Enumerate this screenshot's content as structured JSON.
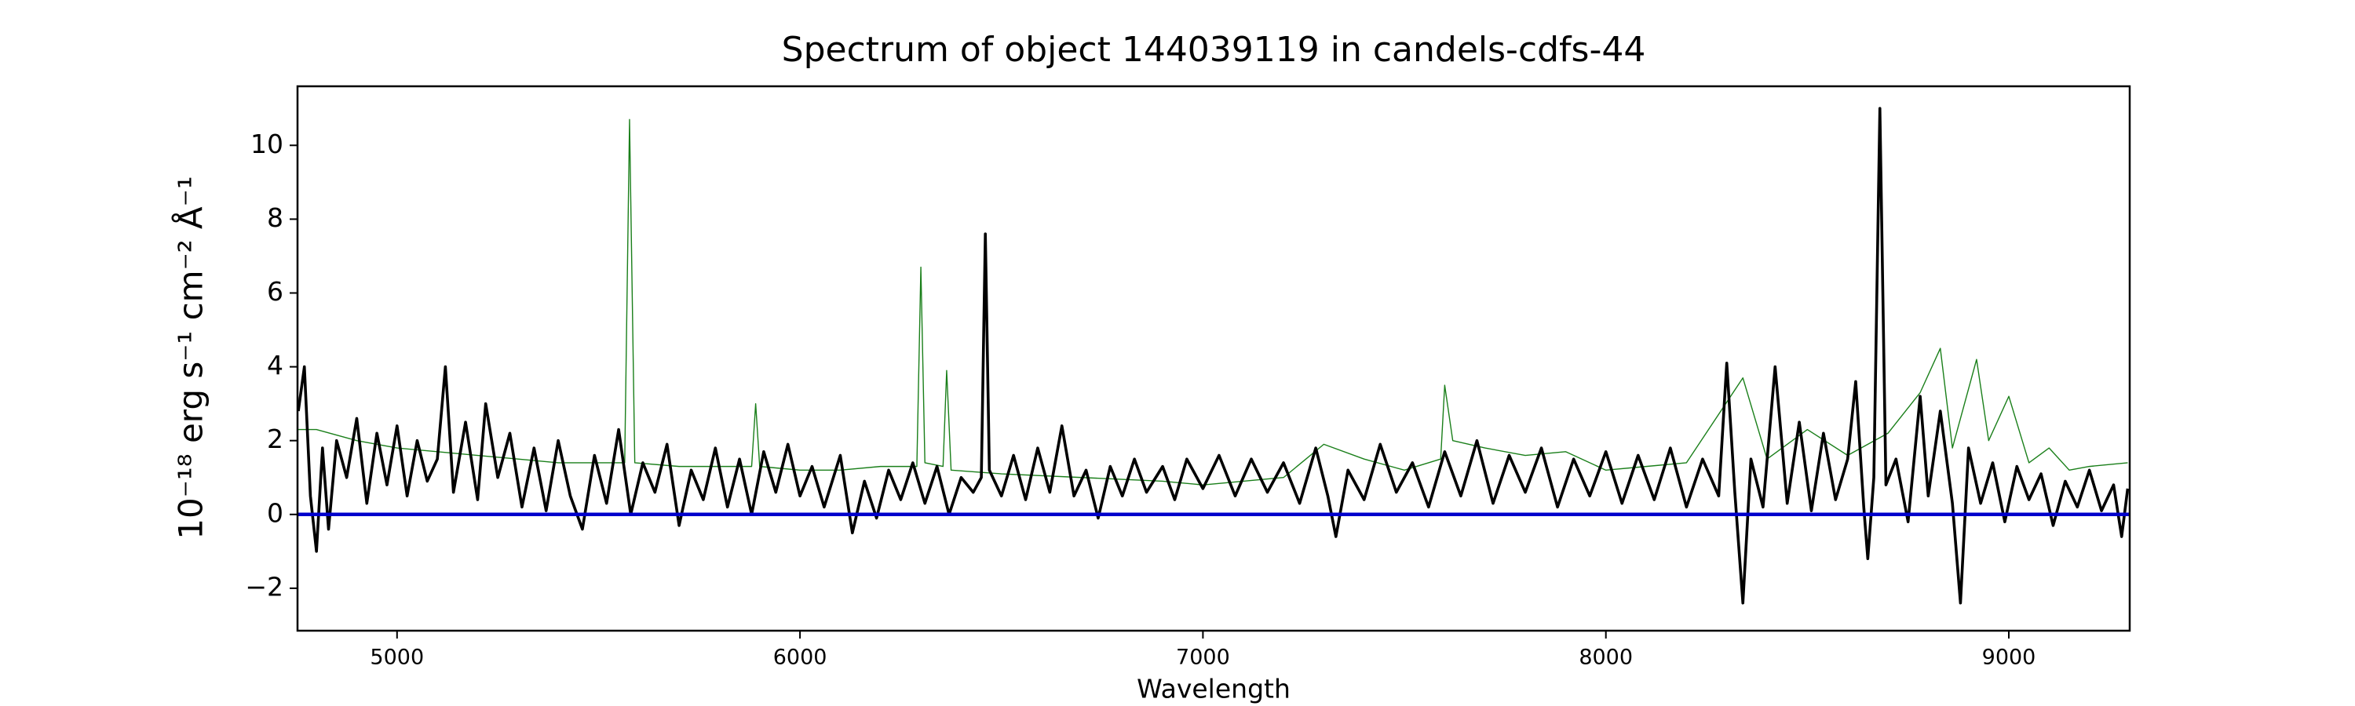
{
  "chart_data": {
    "type": "line",
    "title": "Spectrum of object 144039119 in candels-cdfs-44",
    "xlabel": "Wavelength",
    "ylabel": "10⁻¹⁸ erg s⁻¹ cm⁻² Å⁻¹",
    "xlim": [
      4753,
      9300
    ],
    "ylim": [
      -3.15,
      11.6
    ],
    "xticks": [
      5000,
      6000,
      7000,
      8000,
      9000
    ],
    "yticks": [
      {
        "value": -2,
        "label": "−2"
      },
      0,
      2,
      4,
      6,
      8,
      10
    ],
    "series": [
      {
        "color": "#1a7f1a",
        "x": [
          4755,
          4800,
          4900,
          5000,
          5100,
          5200,
          5300,
          5400,
          5500,
          5565,
          5577,
          5590,
          5700,
          5800,
          5880,
          5890,
          5900,
          6000,
          6100,
          6200,
          6290,
          6300,
          6310,
          6355,
          6364,
          6375,
          6500,
          6700,
          6900,
          7000,
          7200,
          7300,
          7400,
          7500,
          7590,
          7600,
          7620,
          7700,
          7800,
          7900,
          8000,
          8100,
          8200,
          8340,
          8400,
          8500,
          8600,
          8700,
          8780,
          8830,
          8860,
          8920,
          8950,
          9000,
          9050,
          9100,
          9150,
          9200,
          9295
        ],
        "values": [
          2.3,
          2.3,
          2.0,
          1.8,
          1.7,
          1.6,
          1.5,
          1.4,
          1.4,
          1.4,
          10.7,
          1.4,
          1.3,
          1.3,
          1.3,
          3.0,
          1.3,
          1.2,
          1.2,
          1.3,
          1.3,
          6.7,
          1.4,
          1.3,
          3.9,
          1.2,
          1.1,
          1.0,
          0.9,
          0.8,
          1.0,
          1.9,
          1.5,
          1.2,
          1.5,
          3.5,
          2.0,
          1.8,
          1.6,
          1.7,
          1.2,
          1.3,
          1.4,
          3.7,
          1.5,
          2.3,
          1.6,
          2.2,
          3.3,
          4.5,
          1.8,
          4.2,
          2.0,
          3.2,
          1.4,
          1.8,
          1.2,
          1.3,
          1.4
        ]
      },
      {
        "color": "#000000",
        "x": [
          4755,
          4770,
          4785,
          4800,
          4815,
          4830,
          4850,
          4875,
          4900,
          4925,
          4950,
          4975,
          5000,
          5025,
          5050,
          5075,
          5100,
          5120,
          5140,
          5170,
          5200,
          5220,
          5250,
          5280,
          5310,
          5340,
          5370,
          5400,
          5430,
          5460,
          5490,
          5520,
          5550,
          5580,
          5610,
          5640,
          5670,
          5700,
          5730,
          5760,
          5790,
          5820,
          5850,
          5880,
          5910,
          5940,
          5970,
          6000,
          6030,
          6060,
          6100,
          6130,
          6160,
          6190,
          6220,
          6250,
          6280,
          6310,
          6340,
          6370,
          6400,
          6430,
          6450,
          6460,
          6470,
          6500,
          6530,
          6560,
          6590,
          6620,
          6650,
          6680,
          6710,
          6740,
          6770,
          6800,
          6830,
          6860,
          6900,
          6930,
          6960,
          7000,
          7040,
          7080,
          7120,
          7160,
          7200,
          7240,
          7280,
          7310,
          7330,
          7360,
          7400,
          7440,
          7480,
          7520,
          7560,
          7600,
          7640,
          7680,
          7720,
          7760,
          7800,
          7840,
          7880,
          7920,
          7960,
          8000,
          8040,
          8080,
          8120,
          8160,
          8200,
          8240,
          8280,
          8300,
          8320,
          8340,
          8360,
          8390,
          8420,
          8450,
          8480,
          8510,
          8540,
          8570,
          8600,
          8620,
          8640,
          8650,
          8665,
          8680,
          8695,
          8720,
          8750,
          8780,
          8800,
          8830,
          8860,
          8880,
          8900,
          8930,
          8960,
          8990,
          9020,
          9050,
          9080,
          9110,
          9140,
          9170,
          9200,
          9230,
          9260,
          9280,
          9295
        ],
        "values": [
          2.8,
          4.0,
          0.5,
          -1.0,
          1.8,
          -0.4,
          2.0,
          1.0,
          2.6,
          0.3,
          2.2,
          0.8,
          2.4,
          0.5,
          2.0,
          0.9,
          1.5,
          4.0,
          0.6,
          2.5,
          0.4,
          3.0,
          1.0,
          2.2,
          0.2,
          1.8,
          0.1,
          2.0,
          0.5,
          -0.4,
          1.6,
          0.3,
          2.3,
          0.0,
          1.4,
          0.6,
          1.9,
          -0.3,
          1.2,
          0.4,
          1.8,
          0.2,
          1.5,
          0.0,
          1.7,
          0.6,
          1.9,
          0.5,
          1.3,
          0.2,
          1.6,
          -0.5,
          0.9,
          -0.1,
          1.2,
          0.4,
          1.4,
          0.3,
          1.3,
          0.0,
          1.0,
          0.6,
          1.0,
          7.6,
          1.2,
          0.5,
          1.6,
          0.4,
          1.8,
          0.6,
          2.4,
          0.5,
          1.2,
          -0.1,
          1.3,
          0.5,
          1.5,
          0.6,
          1.3,
          0.4,
          1.5,
          0.7,
          1.6,
          0.5,
          1.5,
          0.6,
          1.4,
          0.3,
          1.8,
          0.5,
          -0.6,
          1.2,
          0.4,
          1.9,
          0.6,
          1.4,
          0.2,
          1.7,
          0.5,
          2.0,
          0.3,
          1.6,
          0.6,
          1.8,
          0.2,
          1.5,
          0.5,
          1.7,
          0.3,
          1.6,
          0.4,
          1.8,
          0.2,
          1.5,
          0.5,
          4.1,
          0.6,
          -2.4,
          1.5,
          0.2,
          4.0,
          0.3,
          2.5,
          0.1,
          2.2,
          0.4,
          1.5,
          3.6,
          0.2,
          -1.2,
          1.0,
          11.0,
          0.8,
          1.5,
          -0.2,
          3.2,
          0.5,
          2.8,
          0.3,
          -2.4,
          1.8,
          0.3,
          1.4,
          -0.2,
          1.3,
          0.4,
          1.1,
          -0.3,
          0.9,
          0.2,
          1.2,
          0.1,
          0.8,
          -0.6,
          0.7
        ]
      },
      {
        "color": "#0000cc",
        "x": [
          4753,
          9300
        ],
        "values": [
          0,
          0
        ]
      }
    ]
  }
}
